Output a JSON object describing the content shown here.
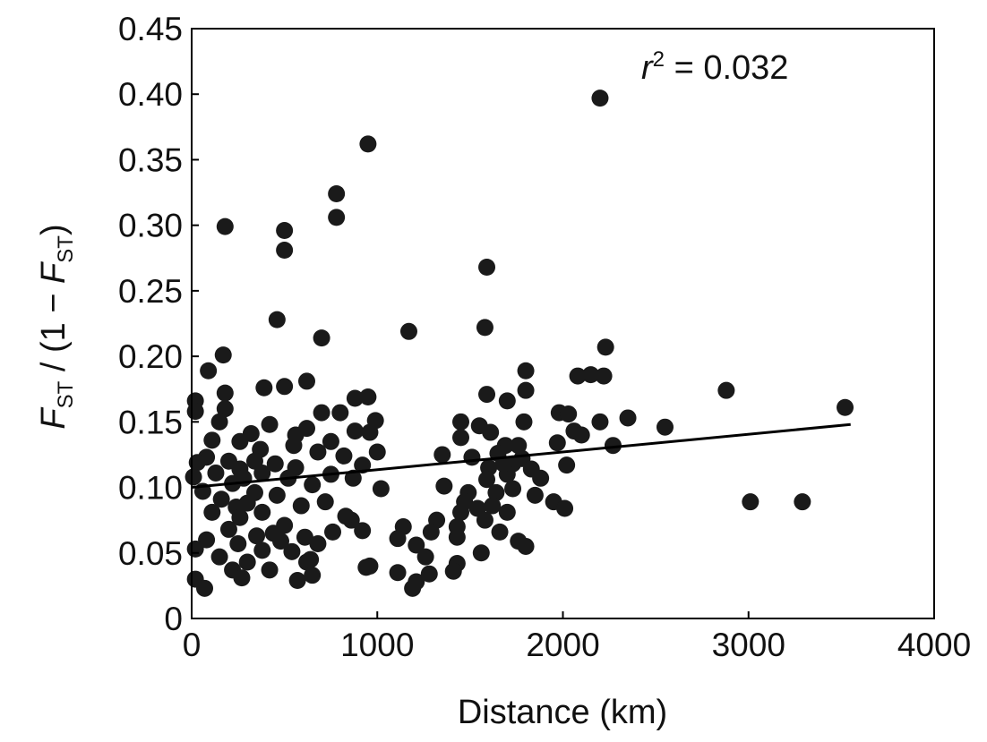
{
  "chart_data": {
    "type": "scatter",
    "xlabel": "Distance (km)",
    "ylabel": {
      "F": "F",
      "sub1": "ST",
      "mid": " / (1 − ",
      "F2": "F",
      "sub2": "ST",
      "end": ")"
    },
    "xlim": [
      0,
      4000
    ],
    "ylim": [
      0,
      0.45
    ],
    "x_ticks": [
      "0",
      "1000",
      "2000",
      "3000",
      "4000"
    ],
    "y_ticks": [
      "0",
      "0.05",
      "0.10",
      "0.15",
      "0.20",
      "0.25",
      "0.30",
      "0.35",
      "0.40",
      "0.45"
    ],
    "annotation": {
      "r": "r",
      "sup": "2",
      "rest": " = 0.032"
    },
    "grid": false,
    "marker_color": "#1a1a1a",
    "line_color": "#000000",
    "points": [
      [
        2200,
        0.397
      ],
      [
        950,
        0.362
      ],
      [
        780,
        0.324
      ],
      [
        780,
        0.306
      ],
      [
        180,
        0.299
      ],
      [
        500,
        0.296
      ],
      [
        500,
        0.281
      ],
      [
        1590,
        0.268
      ],
      [
        460,
        0.228
      ],
      [
        1580,
        0.222
      ],
      [
        1170,
        0.219
      ],
      [
        700,
        0.214
      ],
      [
        2230,
        0.207
      ],
      [
        170,
        0.201
      ],
      [
        90,
        0.189
      ],
      [
        1800,
        0.189
      ],
      [
        2080,
        0.185
      ],
      [
        2150,
        0.186
      ],
      [
        2220,
        0.185
      ],
      [
        620,
        0.181
      ],
      [
        390,
        0.176
      ],
      [
        500,
        0.177
      ],
      [
        2880,
        0.174
      ],
      [
        180,
        0.172
      ],
      [
        1590,
        0.171
      ],
      [
        1800,
        0.174
      ],
      [
        880,
        0.168
      ],
      [
        950,
        0.169
      ],
      [
        1700,
        0.166
      ],
      [
        20,
        0.166
      ],
      [
        180,
        0.16
      ],
      [
        3520,
        0.161
      ],
      [
        20,
        0.158
      ],
      [
        700,
        0.157
      ],
      [
        800,
        0.157
      ],
      [
        1980,
        0.157
      ],
      [
        2030,
        0.156
      ],
      [
        2350,
        0.153
      ],
      [
        150,
        0.15
      ],
      [
        1450,
        0.15
      ],
      [
        990,
        0.151
      ],
      [
        2200,
        0.15
      ],
      [
        420,
        0.148
      ],
      [
        1790,
        0.15
      ],
      [
        1550,
        0.147
      ],
      [
        2550,
        0.146
      ],
      [
        620,
        0.145
      ],
      [
        880,
        0.143
      ],
      [
        2060,
        0.143
      ],
      [
        320,
        0.141
      ],
      [
        1610,
        0.142
      ],
      [
        1450,
        0.138
      ],
      [
        110,
        0.136
      ],
      [
        260,
        0.135
      ],
      [
        750,
        0.135
      ],
      [
        1970,
        0.134
      ],
      [
        2270,
        0.132
      ],
      [
        550,
        0.132
      ],
      [
        1690,
        0.132
      ],
      [
        370,
        0.129
      ],
      [
        680,
        0.127
      ],
      [
        1000,
        0.127
      ],
      [
        1350,
        0.125
      ],
      [
        1650,
        0.126
      ],
      [
        80,
        0.123
      ],
      [
        820,
        0.124
      ],
      [
        1510,
        0.123
      ],
      [
        1780,
        0.122
      ],
      [
        30,
        0.119
      ],
      [
        200,
        0.12
      ],
      [
        450,
        0.118
      ],
      [
        920,
        0.117
      ],
      [
        1730,
        0.118
      ],
      [
        2020,
        0.117
      ],
      [
        260,
        0.114
      ],
      [
        560,
        0.115
      ],
      [
        1600,
        0.115
      ],
      [
        1830,
        0.114
      ],
      [
        130,
        0.111
      ],
      [
        380,
        0.111
      ],
      [
        750,
        0.11
      ],
      [
        1700,
        0.11
      ],
      [
        10,
        0.108
      ],
      [
        280,
        0.107
      ],
      [
        520,
        0.107
      ],
      [
        870,
        0.107
      ],
      [
        1590,
        0.106
      ],
      [
        1880,
        0.107
      ],
      [
        220,
        0.103
      ],
      [
        650,
        0.102
      ],
      [
        1020,
        0.099
      ],
      [
        1360,
        0.101
      ],
      [
        1730,
        0.099
      ],
      [
        60,
        0.097
      ],
      [
        340,
        0.096
      ],
      [
        1490,
        0.096
      ],
      [
        1640,
        0.096
      ],
      [
        460,
        0.094
      ],
      [
        1850,
        0.094
      ],
      [
        160,
        0.091
      ],
      [
        300,
        0.088
      ],
      [
        720,
        0.089
      ],
      [
        1470,
        0.089
      ],
      [
        1950,
        0.089
      ],
      [
        3010,
        0.089
      ],
      [
        3290,
        0.089
      ],
      [
        240,
        0.085
      ],
      [
        590,
        0.086
      ],
      [
        1620,
        0.086
      ],
      [
        2010,
        0.084
      ],
      [
        110,
        0.081
      ],
      [
        380,
        0.081
      ],
      [
        1450,
        0.081
      ],
      [
        1700,
        0.081
      ],
      [
        260,
        0.077
      ],
      [
        860,
        0.075
      ],
      [
        1320,
        0.075
      ],
      [
        1580,
        0.075
      ],
      [
        500,
        0.071
      ],
      [
        1140,
        0.07
      ],
      [
        1430,
        0.07
      ],
      [
        200,
        0.068
      ],
      [
        760,
        0.066
      ],
      [
        920,
        0.067
      ],
      [
        1290,
        0.066
      ],
      [
        1660,
        0.066
      ],
      [
        350,
        0.063
      ],
      [
        610,
        0.062
      ],
      [
        1110,
        0.061
      ],
      [
        1430,
        0.062
      ],
      [
        80,
        0.06
      ],
      [
        480,
        0.059
      ],
      [
        1760,
        0.059
      ],
      [
        250,
        0.057
      ],
      [
        680,
        0.057
      ],
      [
        1210,
        0.056
      ],
      [
        1800,
        0.055
      ],
      [
        20,
        0.053
      ],
      [
        380,
        0.052
      ],
      [
        540,
        0.051
      ],
      [
        1560,
        0.05
      ],
      [
        1260,
        0.047
      ],
      [
        150,
        0.047
      ],
      [
        640,
        0.045
      ],
      [
        300,
        0.043
      ],
      [
        620,
        0.043
      ],
      [
        1430,
        0.042
      ],
      [
        960,
        0.04
      ],
      [
        940,
        0.039
      ],
      [
        220,
        0.037
      ],
      [
        420,
        0.037
      ],
      [
        1110,
        0.035
      ],
      [
        1280,
        0.034
      ],
      [
        1410,
        0.036
      ],
      [
        650,
        0.033
      ],
      [
        270,
        0.031
      ],
      [
        570,
        0.029
      ],
      [
        1210,
        0.028
      ],
      [
        20,
        0.03
      ],
      [
        1190,
        0.023
      ],
      [
        70,
        0.023
      ],
      [
        440,
        0.065
      ],
      [
        830,
        0.078
      ],
      [
        1540,
        0.084
      ],
      [
        1680,
        0.118
      ],
      [
        340,
        0.12
      ],
      [
        560,
        0.14
      ],
      [
        960,
        0.142
      ],
      [
        1760,
        0.132
      ],
      [
        2100,
        0.14
      ]
    ],
    "regression": {
      "x": [
        0,
        3550
      ],
      "y": [
        0.1,
        0.148
      ]
    }
  }
}
